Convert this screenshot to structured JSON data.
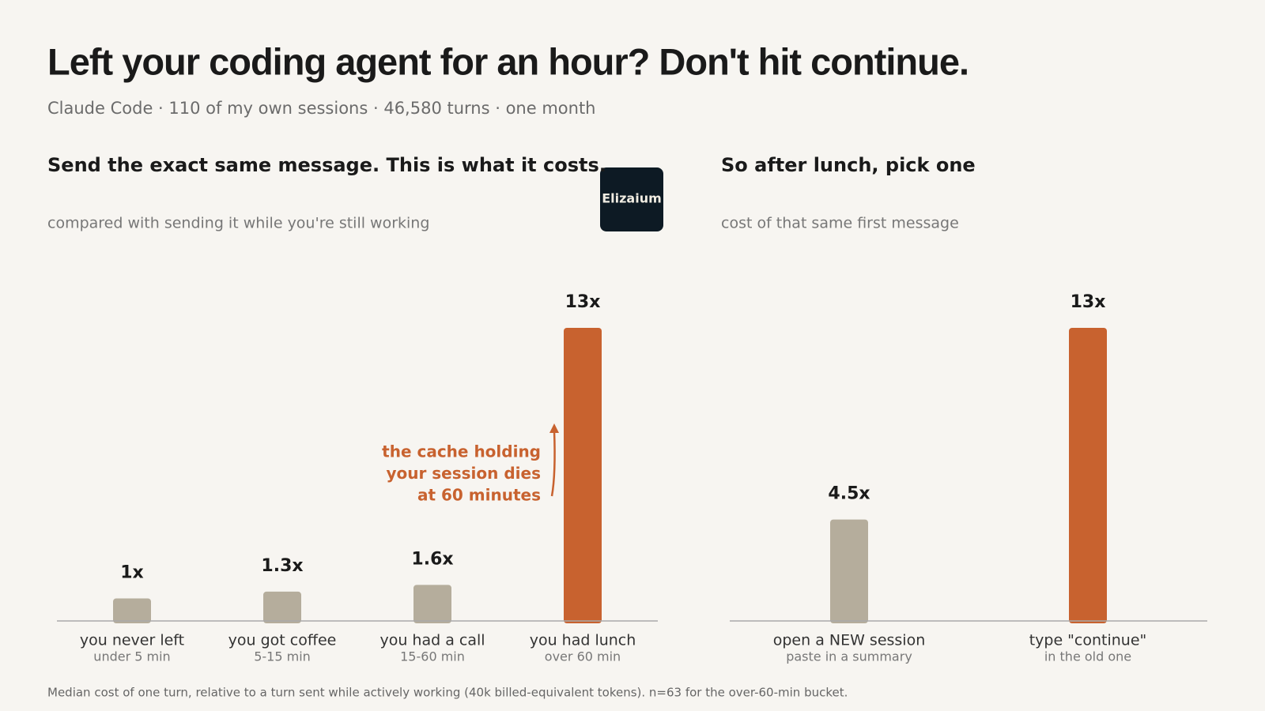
{
  "title": "Left your coding agent for an hour? Don't hit continue.",
  "subtitle": "Claude Code · 110 of my own sessions · 46,580 turns · one month",
  "badge": "Elizaium",
  "footnote": "Median cost of one turn, relative to a turn sent while actively working (40k billed-equivalent tokens). n=63 for the over-60-min bucket.",
  "chart_data": [
    {
      "type": "bar",
      "title": "Send the exact same message. This is what it costs.",
      "subtitle": "compared with sending it while you're still working",
      "categories": [
        "you never left",
        "you got coffee",
        "you had a call",
        "you had lunch"
      ],
      "sublabels": [
        "under 5 min",
        "5-15 min",
        "15-60 min",
        "over 60 min"
      ],
      "values": [
        1,
        1.3,
        1.6,
        13
      ],
      "value_labels": [
        "1x",
        "1.3x",
        "1.6x",
        "13x"
      ],
      "colors": [
        "#b5ad9c",
        "#b5ad9c",
        "#b5ad9c",
        "#c8622f"
      ],
      "annotation": [
        "the cache holding",
        "your session dies",
        "at 60 minutes"
      ]
    },
    {
      "type": "bar",
      "title": "So after lunch, pick one",
      "subtitle": "cost of that same first message",
      "categories": [
        "open a NEW session",
        "type \"continue\""
      ],
      "sublabels": [
        "paste in a summary",
        "in the old one"
      ],
      "values": [
        4.5,
        13
      ],
      "value_labels": [
        "4.5x",
        "13x"
      ],
      "colors": [
        "#b5ad9c",
        "#c8622f"
      ]
    }
  ]
}
